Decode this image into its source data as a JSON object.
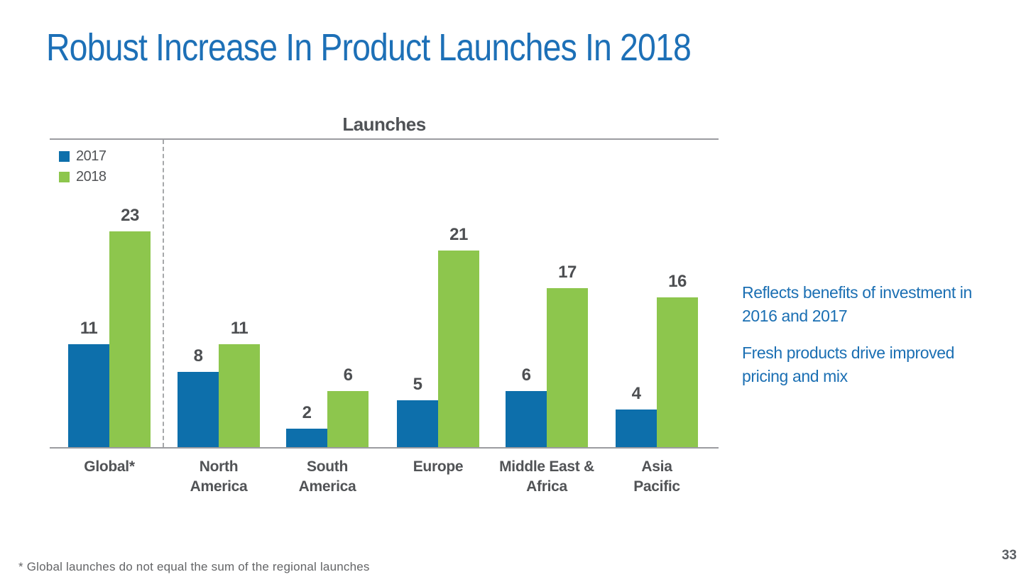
{
  "title": "Robust Increase In Product Launches In 2018",
  "chart_data": {
    "type": "bar",
    "title": "Launches",
    "categories": [
      "Global*",
      "North America",
      "South America",
      "Europe",
      "Middle East & Africa",
      "Asia Pacific"
    ],
    "category_lines": [
      "Global*",
      "North\nAmerica",
      "South\nAmerica",
      "Europe",
      "Middle East &\nAfrica",
      "Asia\nPacific"
    ],
    "series": [
      {
        "name": "2017",
        "color": "#0d6fab",
        "values": [
          11,
          8,
          2,
          5,
          6,
          4
        ]
      },
      {
        "name": "2018",
        "color": "#8dc64d",
        "values": [
          23,
          11,
          6,
          21,
          17,
          16
        ]
      }
    ],
    "legend_position": "top-left",
    "grid": false,
    "xlabel": "",
    "ylabel": "",
    "ylim": [
      0,
      25
    ],
    "separator_after_category": "Global*"
  },
  "notes": [
    "Reflects benefits of investment in\n2016 and 2017",
    "Fresh products drive improved\npricing and mix"
  ],
  "footnote": "* Global launches do not equal the sum of the regional launches",
  "page_number": "33",
  "colors": {
    "title_blue": "#1d70b7",
    "notes_blue": "#1b6fb3",
    "bar_blue_2017": "#0d6fab",
    "bar_green_2018": "#8dc64d",
    "chart_text_gray": "#515356",
    "axis_line_gray": "#9b9ca0",
    "footnote_gray": "#646567"
  }
}
